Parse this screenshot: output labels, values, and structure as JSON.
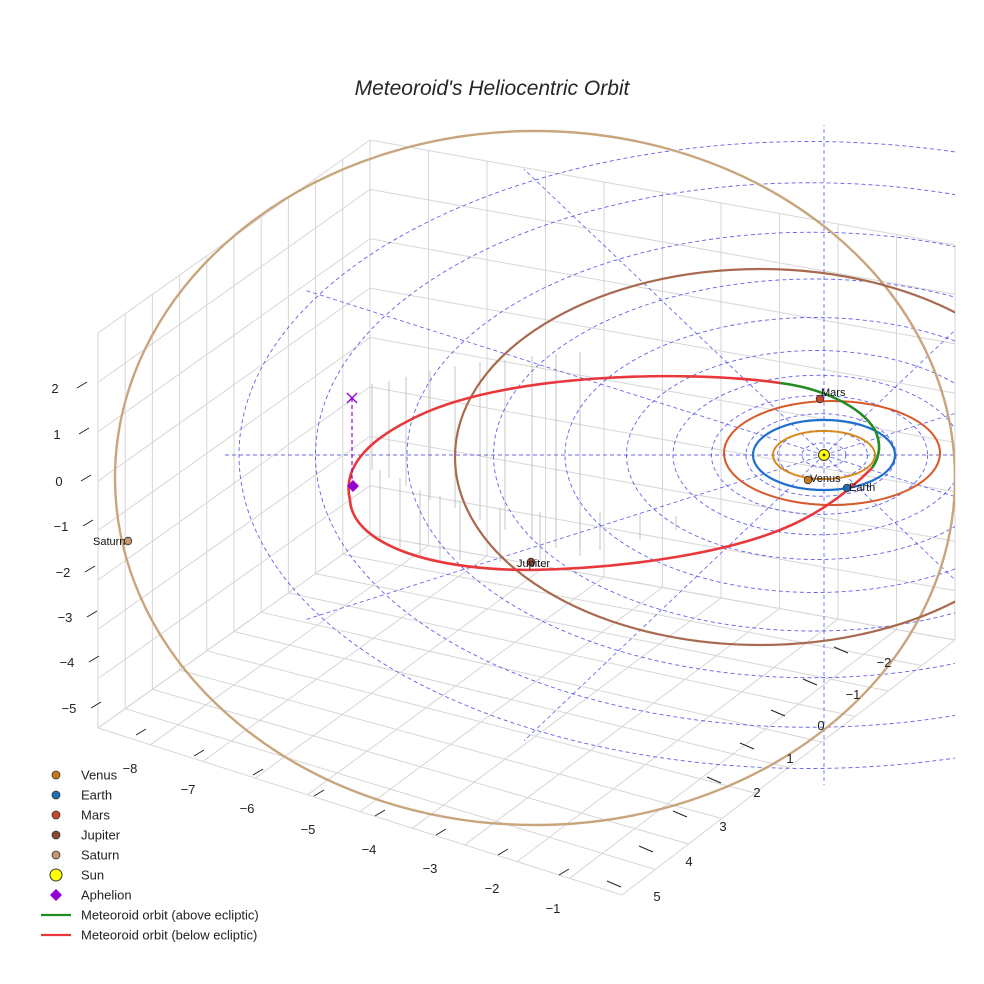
{
  "chart_data": {
    "type": "line",
    "title": "Meteoroid's Heliocentric Orbit",
    "xlabel": "",
    "ylabel": "",
    "zlabel": "",
    "grid": true,
    "legend_position": "bottom-left",
    "x_ticks": [
      "−8",
      "−7",
      "−6",
      "−5",
      "−4",
      "−3",
      "−2",
      "−1"
    ],
    "y_ticks": [
      "−2",
      "−1",
      "0",
      "1",
      "2",
      "3",
      "4",
      "5"
    ],
    "z_ticks": [
      "2",
      "1",
      "0",
      "−1",
      "−2",
      "−3",
      "−4",
      "−5"
    ],
    "planets": [
      {
        "name": "Venus",
        "orbit_radius_au": 0.72,
        "color": "#d98a1e",
        "marker_color": "#c8781a"
      },
      {
        "name": "Earth",
        "orbit_radius_au": 1.0,
        "color": "#1f6fcc",
        "marker_color": "#1f6fb4"
      },
      {
        "name": "Mars",
        "orbit_radius_au": 1.52,
        "color": "#d85a2a",
        "marker_color": "#c8482a"
      },
      {
        "name": "Jupiter",
        "orbit_radius_au": 5.2,
        "color": "#a86a4e",
        "marker_color": "#8c4a32"
      },
      {
        "name": "Saturn",
        "orbit_radius_au": 9.54,
        "color": "#c9a57d",
        "marker_color": "#c8966e"
      }
    ],
    "sun": {
      "name": "Sun",
      "color": "#ffff00"
    },
    "aphelion": {
      "name": "Aphelion",
      "color": "#9400d3"
    },
    "series": [
      {
        "name": "Meteoroid orbit (above ecliptic)",
        "color": "#228b22"
      },
      {
        "name": "Meteoroid orbit (below ecliptic)",
        "color": "#e8383c"
      }
    ]
  },
  "legend": [
    {
      "label": "Venus",
      "kind": "dot",
      "color": "#c8781a"
    },
    {
      "label": "Earth",
      "kind": "dot",
      "color": "#1f6fb4"
    },
    {
      "label": "Mars",
      "kind": "dot",
      "color": "#c8482a"
    },
    {
      "label": "Jupiter",
      "kind": "dot",
      "color": "#8c4a32"
    },
    {
      "label": "Saturn",
      "kind": "dot",
      "color": "#c8966e"
    },
    {
      "label": "Sun",
      "kind": "sun",
      "color": "#ffff00"
    },
    {
      "label": "Aphelion",
      "kind": "diamond",
      "color": "#9400d3"
    },
    {
      "label": "Meteoroid orbit (above ecliptic)",
      "kind": "line",
      "color": "#228b22"
    },
    {
      "label": "Meteoroid orbit (below ecliptic)",
      "kind": "line",
      "color": "#e8383c"
    }
  ]
}
